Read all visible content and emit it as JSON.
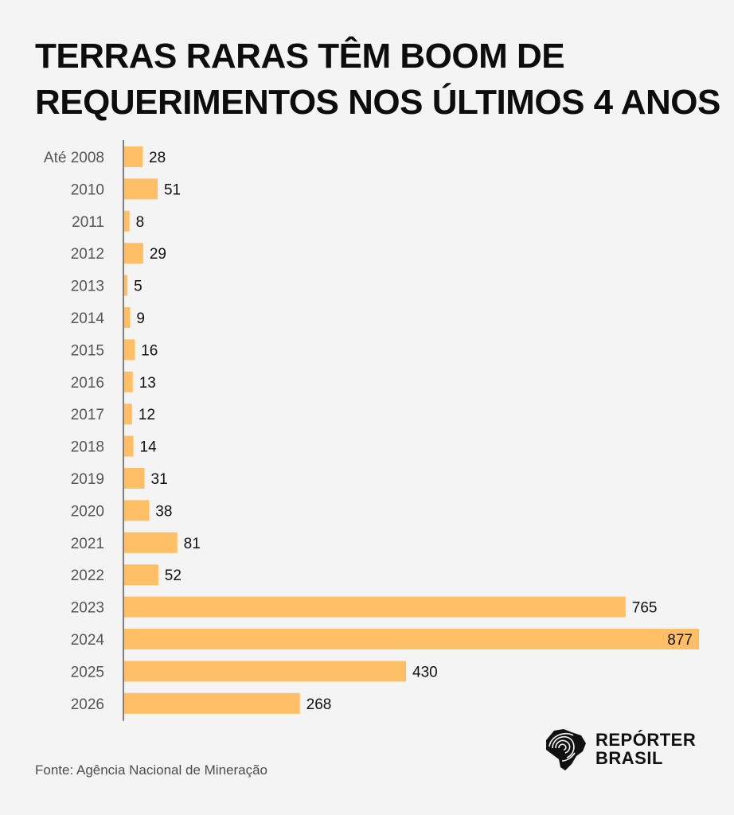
{
  "title_lines": [
    "TERRAS RARAS TÊM BOOM DE",
    "REQUERIMENTOS NOS ÚLTIMOS 4 ANOS"
  ],
  "source": "Fonte: Agência Nacional de Mineração",
  "logo": {
    "line1": "REPÓRTER",
    "line2": "BRASIL",
    "icon": "fingerprint-brazil-map-icon"
  },
  "colors": {
    "bar": "#ffbf66",
    "axis": "#333333",
    "label": "#555555",
    "value": "#111111",
    "background": "#f4f4f4"
  },
  "chart_data": {
    "type": "bar",
    "orientation": "horizontal",
    "title": "TERRAS RARAS TÊM BOOM DE REQUERIMENTOS NOS ÚLTIMOS 4 ANOS",
    "categories": [
      "Até 2008",
      "2010",
      "2011",
      "2012",
      "2013",
      "2014",
      "2015",
      "2016",
      "2017",
      "2018",
      "2019",
      "2020",
      "2021",
      "2022",
      "2023",
      "2024",
      "2025",
      "2026"
    ],
    "values": [
      28,
      51,
      8,
      29,
      5,
      9,
      16,
      13,
      12,
      14,
      31,
      38,
      81,
      52,
      765,
      877,
      430,
      268
    ],
    "xlabel": "",
    "ylabel": "",
    "xlim": [
      0,
      877
    ],
    "grid": false,
    "legend": "none",
    "data_labels": true
  }
}
